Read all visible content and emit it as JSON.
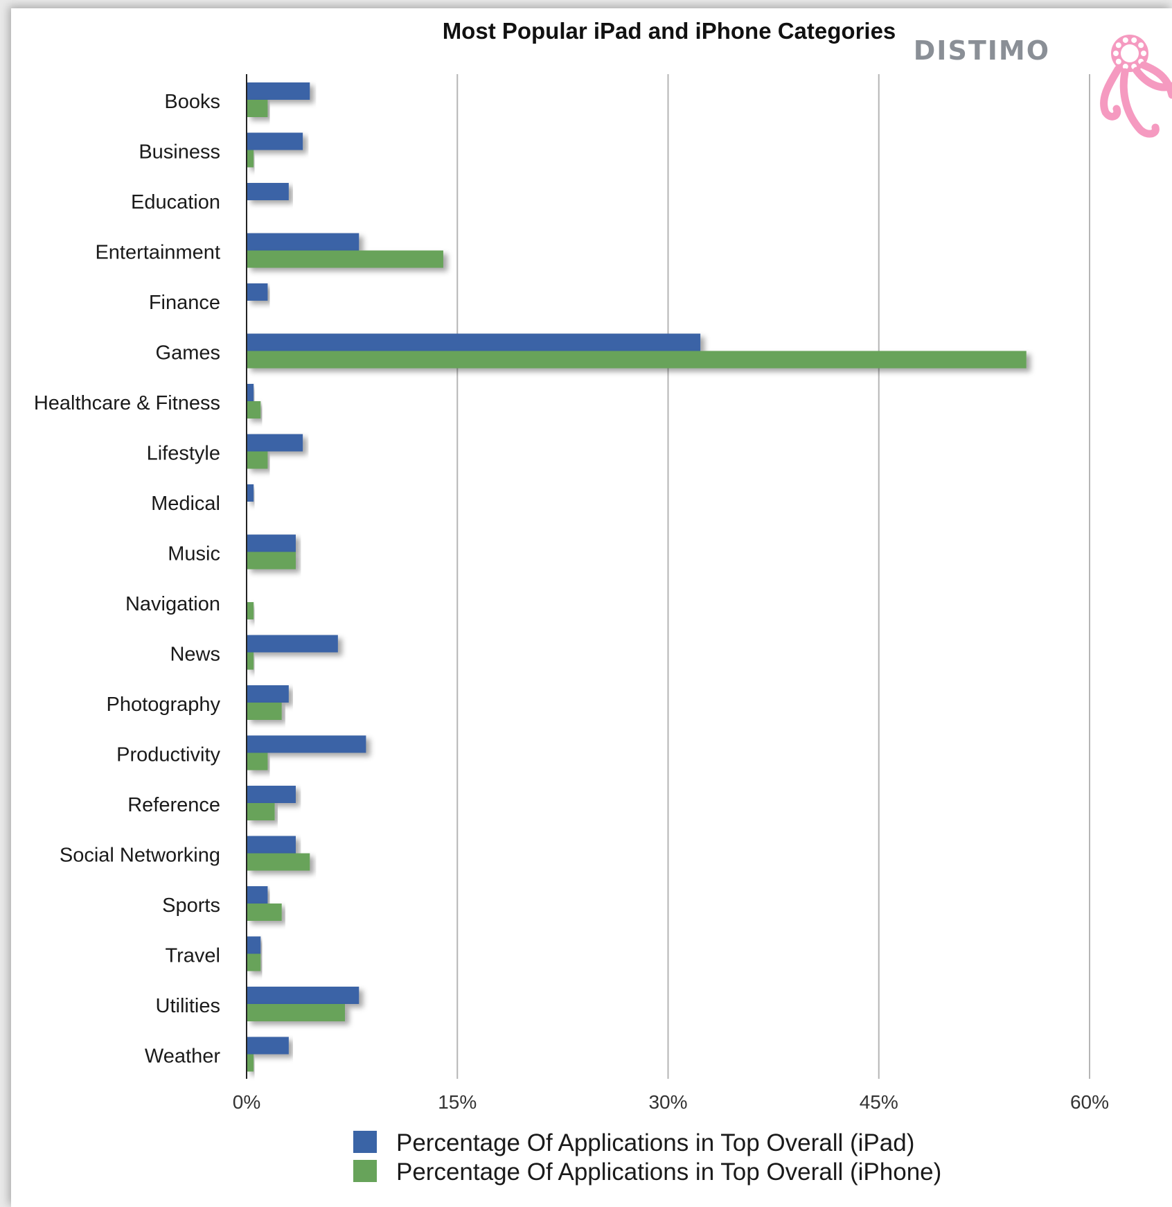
{
  "colors": {
    "ipad": "#3a64a6",
    "iphone": "#67a35a",
    "grid": "#b5b5b5",
    "axis": "#222222",
    "brand": "#f59ac0"
  },
  "brand": {
    "name": "DISTIMO",
    "icon": "octopus-logo-icon"
  },
  "chart_data": {
    "type": "bar",
    "orientation": "horizontal",
    "title": "Most Popular iPad and iPhone Categories",
    "xlabel": "",
    "ylabel": "",
    "xlim": [
      0,
      60
    ],
    "x_ticks": [
      "0%",
      "15%",
      "30%",
      "45%",
      "60%"
    ],
    "x_tick_values": [
      0,
      15,
      30,
      45,
      60
    ],
    "grid": true,
    "legend_position": "bottom",
    "categories": [
      "Books",
      "Business",
      "Education",
      "Entertainment",
      "Finance",
      "Games",
      "Healthcare & Fitness",
      "Lifestyle",
      "Medical",
      "Music",
      "Navigation",
      "News",
      "Photography",
      "Productivity",
      "Reference",
      "Social Networking",
      "Sports",
      "Travel",
      "Utilities",
      "Weather"
    ],
    "series": [
      {
        "name": "Percentage Of Applications in Top Overall (iPad)",
        "values": [
          4.5,
          4.0,
          3.0,
          8.0,
          1.5,
          32.3,
          0.5,
          4.0,
          0.5,
          3.5,
          0.0,
          6.5,
          3.0,
          8.5,
          3.5,
          3.5,
          1.5,
          1.0,
          8.0,
          3.0
        ]
      },
      {
        "name": "Percentage Of Applications in Top Overall (iPhone)",
        "values": [
          1.5,
          0.5,
          0.0,
          14.0,
          0.0,
          55.5,
          1.0,
          1.5,
          0.0,
          3.5,
          0.5,
          0.5,
          2.5,
          1.5,
          2.0,
          4.5,
          2.5,
          1.0,
          7.0,
          0.5
        ]
      }
    ]
  }
}
